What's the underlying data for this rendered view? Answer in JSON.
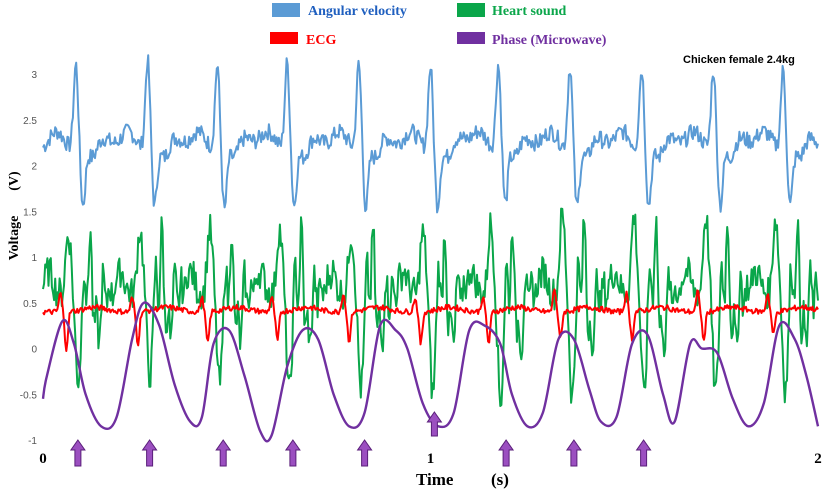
{
  "chart_data": {
    "type": "line",
    "annotation": "Chicken female 2.4kg",
    "xlabel": "Time",
    "xunit": "(s)",
    "ylabel": "Voltage",
    "yunit": "(V)",
    "xlim": [
      0,
      2
    ],
    "ylim": [
      -1,
      3.2
    ],
    "xticks": [
      "0",
      "1",
      "2"
    ],
    "yticks": [
      "-1",
      "-0.5",
      "0",
      "0.5",
      "1",
      "1.5",
      "2",
      "2.5",
      "3"
    ],
    "legend": {
      "placement": "top",
      "entries": [
        {
          "name": "Angular velocity",
          "color": "#5b9bd5"
        },
        {
          "name": "Heart sound",
          "color": "#0aa64a"
        },
        {
          "name": "ECG",
          "color": "#ff0000"
        },
        {
          "name": "Phase (Microwave)",
          "color": "#7030a0"
        }
      ]
    },
    "beat_times": [
      0.085,
      0.27,
      0.45,
      0.63,
      0.815,
      1.0,
      1.175,
      1.36,
      1.545,
      1.73,
      1.91
    ],
    "arrow_times": [
      0.09,
      0.275,
      0.465,
      0.645,
      0.83,
      1.01,
      1.195,
      1.37,
      1.55
    ],
    "series": [
      {
        "name": "Angular velocity",
        "color": "#5b9bd5",
        "baseline": 2.15,
        "peaks": [
          3.1,
          3.15,
          3.1,
          3.12,
          3.1,
          3.08,
          3.1,
          3.08,
          3.06,
          3.05,
          3.04
        ],
        "troughs": [
          1.55,
          1.55,
          1.5,
          1.55,
          1.52,
          1.55,
          1.57,
          1.53,
          1.55,
          1.55,
          1.55
        ]
      },
      {
        "name": "Heart sound",
        "color": "#0aa64a",
        "baseline": 0.6,
        "peaks": [
          1.3,
          1.35,
          1.35,
          1.35,
          1.3,
          1.3,
          1.4,
          1.5,
          1.5,
          1.5,
          1.48
        ],
        "troughs": [
          -0.5,
          -0.45,
          -0.55,
          -0.65,
          -0.6,
          -0.65,
          -0.75,
          -0.7,
          -0.7,
          -0.65,
          -0.6
        ]
      },
      {
        "name": "ECG",
        "color": "#ff0000",
        "baseline": 0.4,
        "peaks": [
          0.6,
          0.55,
          0.55,
          0.55,
          0.6,
          0.55,
          0.55,
          0.65,
          0.6,
          0.62,
          0.6
        ],
        "troughs": [
          0.0,
          0.05,
          0.05,
          0.08,
          0.08,
          0.05,
          0.05,
          0.1,
          0.1,
          0.08,
          0.15
        ]
      },
      {
        "name": "Phase (Microwave)",
        "color": "#7030a0",
        "x": [
          0.0,
          0.01,
          0.05,
          0.08,
          0.11,
          0.15,
          0.19,
          0.23,
          0.26,
          0.3,
          0.34,
          0.38,
          0.41,
          0.44,
          0.48,
          0.52,
          0.56,
          0.59,
          0.63,
          0.67,
          0.71,
          0.75,
          0.79,
          0.83,
          0.87,
          0.91,
          0.94,
          0.98,
          1.02,
          1.06,
          1.1,
          1.14,
          1.18,
          1.21,
          1.25,
          1.29,
          1.33,
          1.37,
          1.41,
          1.44,
          1.48,
          1.52,
          1.56,
          1.6,
          1.63,
          1.67,
          1.7,
          1.74,
          1.78,
          1.82,
          1.86,
          1.9,
          1.94,
          1.97,
          2.0
        ],
        "y": [
          -0.55,
          -0.3,
          0.3,
          0.05,
          -0.5,
          -0.85,
          -0.75,
          0.1,
          0.5,
          0.25,
          -0.4,
          -0.8,
          -0.75,
          0.05,
          0.2,
          -0.3,
          -0.9,
          -0.95,
          -0.2,
          0.2,
          0.1,
          -0.5,
          -0.85,
          -0.7,
          0.25,
          0.2,
          0.0,
          -0.6,
          -0.85,
          -0.7,
          0.2,
          0.25,
          0.05,
          -0.5,
          -0.85,
          -0.7,
          0.1,
          0.1,
          -0.45,
          -0.8,
          -0.75,
          0.05,
          0.15,
          -0.5,
          -0.8,
          0.05,
          0.0,
          -0.05,
          -0.55,
          -0.85,
          -0.6,
          0.25,
          0.1,
          -0.3,
          -0.85
        ]
      }
    ]
  }
}
